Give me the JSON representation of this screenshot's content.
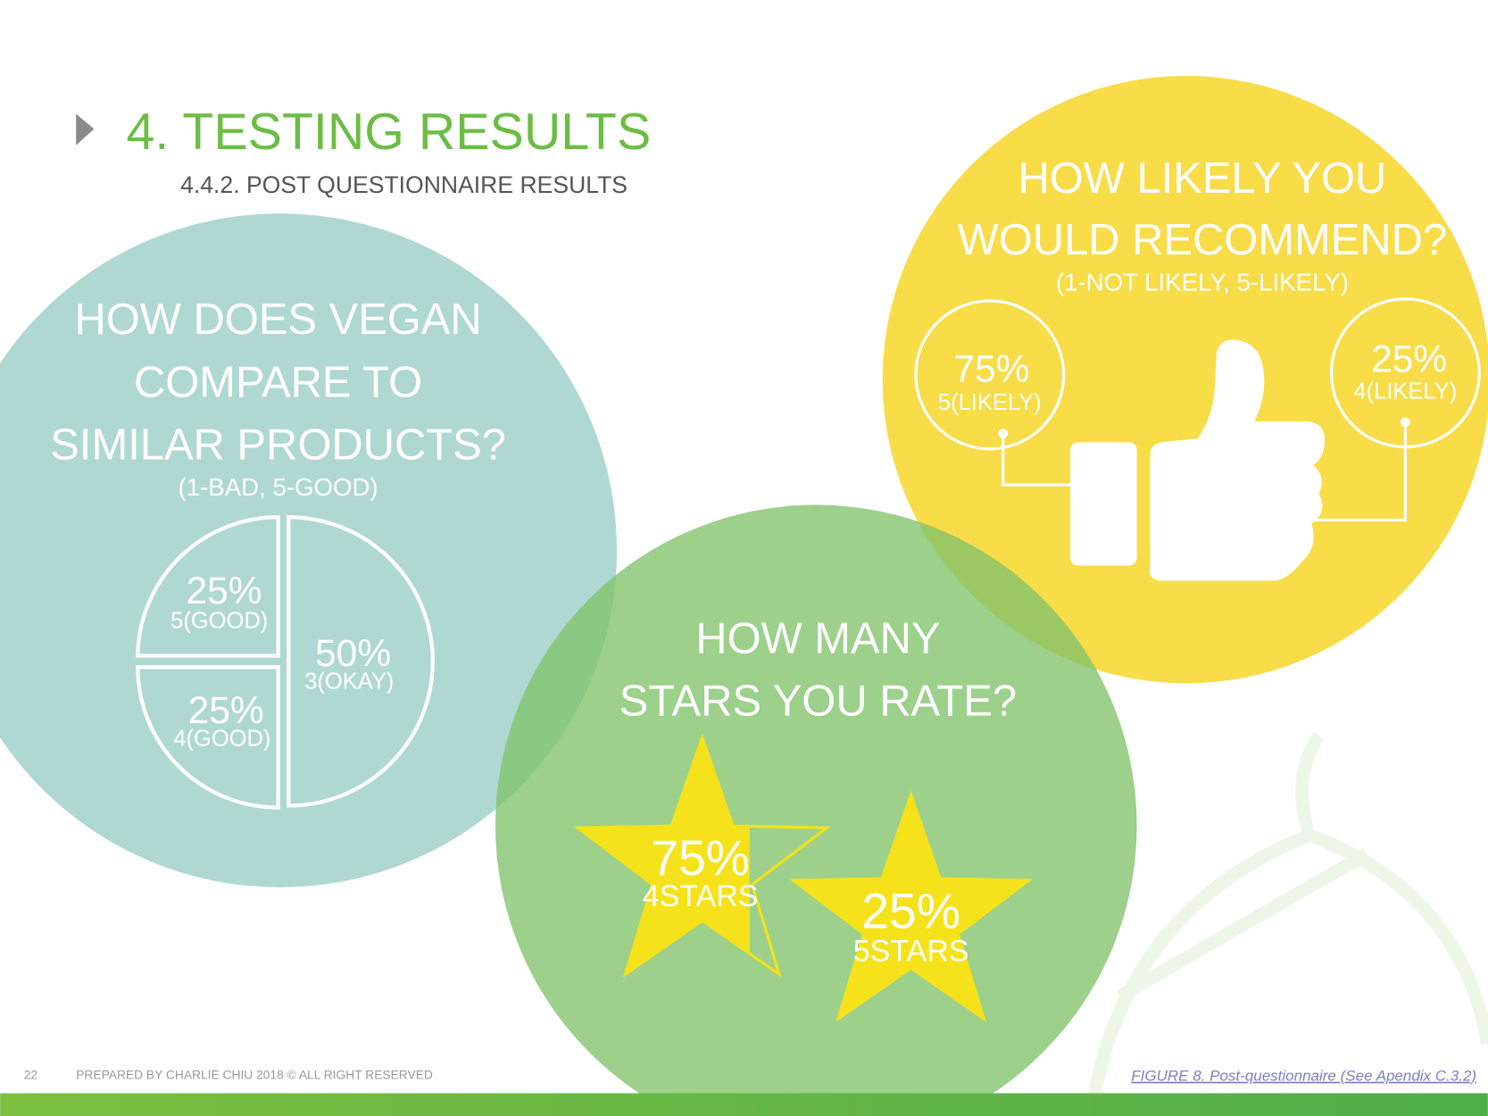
{
  "header": {
    "title": "4. TESTING RESULTS",
    "subtitle": "4.4.2. POST QUESTIONNAIRE RESULTS"
  },
  "compare": {
    "question": [
      "HOW DOES VEGAN",
      "COMPARE TO",
      "SIMILAR PRODUCTS?"
    ],
    "scale": "(1-BAD, 5-GOOD)",
    "slices": [
      {
        "percent": "25%",
        "label": "5(GOOD)"
      },
      {
        "percent": "25%",
        "label": "4(GOOD)"
      },
      {
        "percent": "50%",
        "label": "3(OKAY)"
      }
    ]
  },
  "recommend": {
    "question": [
      "HOW LIKELY YOU",
      "WOULD RECOMMEND?"
    ],
    "scale": "(1-NOT LIKELY, 5-LIKELY)",
    "answers": [
      {
        "percent": "75%",
        "label": "5(LIKELY)"
      },
      {
        "percent": "25%",
        "label": "4(LIKELY)"
      }
    ]
  },
  "stars": {
    "question": [
      "HOW MANY",
      "STARS YOU RATE?"
    ],
    "answers": [
      {
        "percent": "75%",
        "label": "4STARS"
      },
      {
        "percent": "25%",
        "label": "5STARS"
      }
    ]
  },
  "footer": {
    "page": "22",
    "credit": "PREPARED BY CHARLIE CHIU 2018 © ALL RIGHT RESERVED",
    "figure": "FIGURE 8. Post-questionnaire  (See Apendix C.3.2)"
  }
}
